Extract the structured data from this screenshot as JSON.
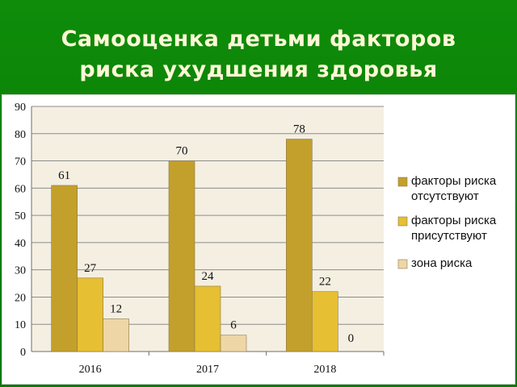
{
  "title_line1": "Самооценка детьми факторов",
  "title_line2": "риска ухудшения здоровья",
  "colors": {
    "plot_bg": "#f4efe1",
    "series": [
      "#c3a02b",
      "#e6bf33",
      "#efd6a6"
    ]
  },
  "chart_data": {
    "type": "bar",
    "title": "",
    "xlabel": "",
    "ylabel": "",
    "ylim": [
      0,
      90
    ],
    "yticks": [
      "0",
      "10",
      "20",
      "30",
      "40",
      "50",
      "60",
      "70",
      "80",
      "90"
    ],
    "categories": [
      "2016",
      "2017",
      "2018"
    ],
    "series": [
      {
        "name": "факторы риска отсутствуют",
        "legend_lines": [
          "факторы риска",
          "отсутствуют"
        ],
        "values": [
          61,
          70,
          78
        ]
      },
      {
        "name": "факторы риска присутствуют",
        "legend_lines": [
          "факторы риска",
          "присутствуют"
        ],
        "values": [
          27,
          24,
          22
        ]
      },
      {
        "name": "зона риска",
        "legend_lines": [
          "зона риска"
        ],
        "values": [
          12,
          6,
          0
        ]
      }
    ],
    "grid": true,
    "legend_position": "right"
  }
}
